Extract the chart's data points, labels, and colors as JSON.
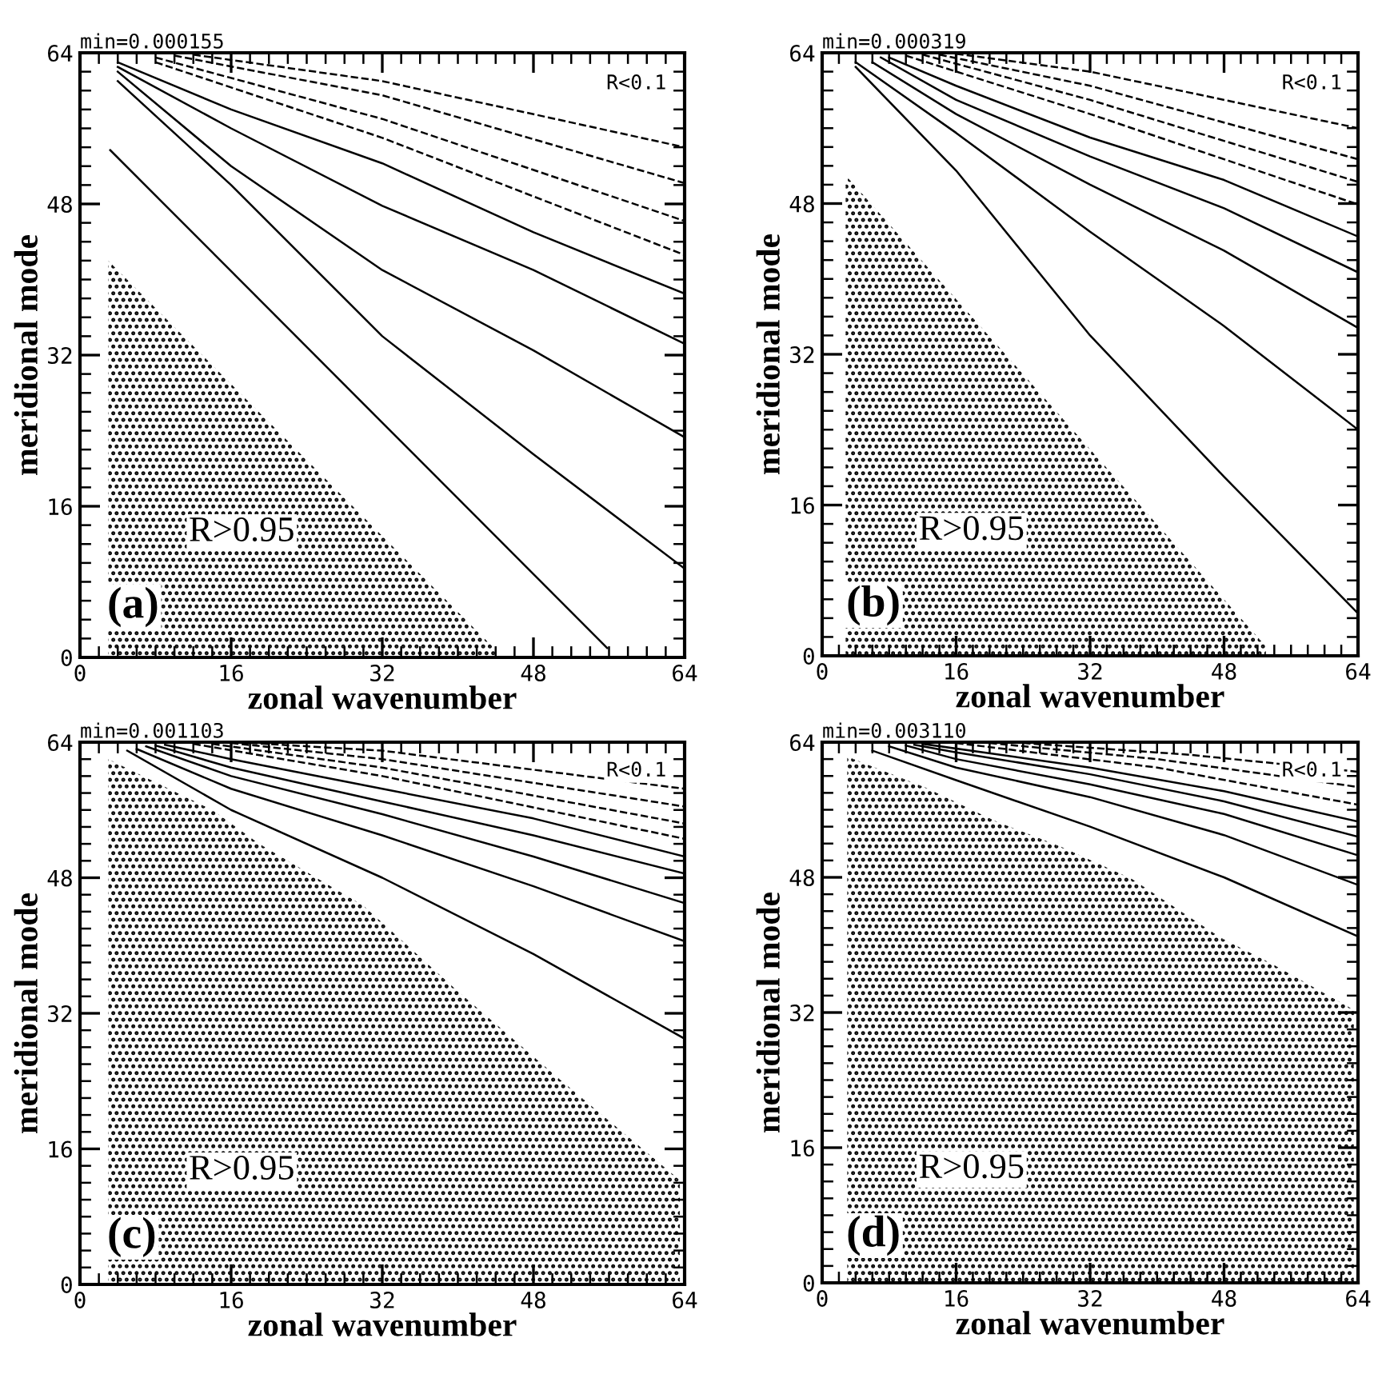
{
  "chart_data": [
    {
      "type": "line",
      "title": "min=0.000155",
      "xlabel": "zonal wavenumber",
      "ylabel": "meridional mode",
      "xlim": [
        0,
        64
      ],
      "ylim": [
        0,
        64
      ],
      "xticks": [
        0,
        16,
        32,
        48,
        64
      ],
      "yticks": [
        0,
        16,
        32,
        48,
        64
      ],
      "grid": false,
      "annotations": [
        "R<0.1",
        "R>0.95",
        "(a)"
      ],
      "series": [
        {
          "type": "area",
          "color": "#000000",
          "x": [
            3,
            44
          ],
          "values": [
            42,
            0.8
          ]
        },
        {
          "color": "#000000",
          "line_style": "solid",
          "x": [
            3.2,
            55.8
          ],
          "values": [
            53.7,
            1
          ]
        },
        {
          "color": "#000000",
          "line_style": "solid",
          "x": [
            4,
            16,
            32,
            48,
            64
          ],
          "values": [
            61,
            50,
            34,
            21.5,
            9.4
          ]
        },
        {
          "color": "#000000",
          "line_style": "solid",
          "x": [
            4,
            16,
            32,
            48,
            64
          ],
          "values": [
            62,
            52,
            41,
            32.5,
            23.3
          ]
        },
        {
          "color": "#000000",
          "line_style": "solid",
          "x": [
            4,
            16,
            32,
            48,
            64
          ],
          "values": [
            62.5,
            56,
            47.8,
            41,
            33.2
          ]
        },
        {
          "color": "#000000",
          "line_style": "solid",
          "x": [
            4,
            16,
            32,
            48,
            64
          ],
          "values": [
            63,
            58,
            52.3,
            45,
            38.5
          ]
        },
        {
          "color": "#000000",
          "line_style": "dashed",
          "x": [
            8,
            32,
            64
          ],
          "values": [
            63,
            55,
            42.6
          ]
        },
        {
          "color": "#000000",
          "line_style": "dashed",
          "x": [
            8,
            32,
            64
          ],
          "values": [
            63.5,
            57,
            46.2
          ]
        },
        {
          "color": "#000000",
          "line_style": "dashed",
          "x": [
            10,
            32,
            64
          ],
          "values": [
            63.7,
            59.5,
            50.2
          ]
        },
        {
          "color": "#000000",
          "line_style": "dashed",
          "x": [
            12,
            32,
            64
          ],
          "values": [
            63.8,
            61,
            54
          ]
        }
      ]
    },
    {
      "type": "line",
      "title": "min=0.000319",
      "xlabel": "zonal wavenumber",
      "ylabel": "meridional mode",
      "xlim": [
        0,
        64
      ],
      "ylim": [
        0,
        64
      ],
      "xticks": [
        0,
        16,
        32,
        48,
        64
      ],
      "yticks": [
        0,
        16,
        32,
        48,
        64
      ],
      "grid": false,
      "annotations": [
        "R<0.1",
        "R>0.95",
        "(b)"
      ],
      "series": [
        {
          "type": "area",
          "color": "#000000",
          "x": [
            2.8,
            53
          ],
          "values": [
            51,
            1
          ]
        },
        {
          "color": "#000000",
          "line_style": "solid",
          "x": [
            4,
            16,
            32,
            48,
            64
          ],
          "values": [
            62.5,
            51.5,
            34,
            19,
            4.5
          ]
        },
        {
          "color": "#000000",
          "line_style": "solid",
          "x": [
            4,
            16,
            32,
            48,
            64
          ],
          "values": [
            63,
            55.5,
            45,
            35,
            24
          ]
        },
        {
          "color": "#000000",
          "line_style": "solid",
          "x": [
            6,
            16,
            32,
            48,
            64
          ],
          "values": [
            63,
            57.5,
            50,
            43,
            34.8
          ]
        },
        {
          "color": "#000000",
          "line_style": "solid",
          "x": [
            7,
            16,
            32,
            48,
            64
          ],
          "values": [
            63.5,
            59,
            53,
            47.5,
            40.7
          ]
        },
        {
          "color": "#000000",
          "line_style": "solid",
          "x": [
            8,
            16,
            32,
            48,
            64
          ],
          "values": [
            63.5,
            60.5,
            55,
            50.5,
            44.5
          ]
        },
        {
          "color": "#000000",
          "line_style": "dashed",
          "x": [
            10,
            32,
            64
          ],
          "values": [
            63.7,
            57.5,
            47.9
          ]
        },
        {
          "color": "#000000",
          "line_style": "dashed",
          "x": [
            12,
            32,
            64
          ],
          "values": [
            63.8,
            59,
            50.3
          ]
        },
        {
          "color": "#000000",
          "line_style": "dashed",
          "x": [
            14,
            32,
            64
          ],
          "values": [
            63.8,
            60.5,
            52.7
          ]
        },
        {
          "color": "#000000",
          "line_style": "dashed",
          "x": [
            16,
            32,
            64
          ],
          "values": [
            63.9,
            62,
            56
          ]
        }
      ]
    },
    {
      "type": "line",
      "title": "min=0.001103",
      "xlabel": "zonal wavenumber",
      "ylabel": "meridional mode",
      "xlim": [
        0,
        64
      ],
      "ylim": [
        0,
        64
      ],
      "xticks": [
        0,
        16,
        32,
        48,
        64
      ],
      "yticks": [
        0,
        16,
        32,
        48,
        64
      ],
      "grid": false,
      "annotations": [
        "R<0.1",
        "R>0.95",
        "(c)"
      ],
      "series": [
        {
          "type": "area",
          "color": "#000000",
          "x": [
            3,
            14,
            19,
            30,
            40,
            51,
            63.5
          ],
          "values": [
            62,
            56,
            52,
            44.7,
            34.6,
            24,
            12.3
          ]
        },
        {
          "color": "#000000",
          "line_style": "solid",
          "x": [
            5,
            16,
            32,
            48,
            64
          ],
          "values": [
            63,
            56,
            48,
            39,
            29
          ]
        },
        {
          "color": "#000000",
          "line_style": "solid",
          "x": [
            6,
            16,
            32,
            48,
            64
          ],
          "values": [
            63.2,
            58.5,
            53,
            47,
            40.5
          ]
        },
        {
          "color": "#000000",
          "line_style": "solid",
          "x": [
            7,
            16,
            32,
            48,
            64
          ],
          "values": [
            63.5,
            60,
            55.5,
            50.5,
            45
          ]
        },
        {
          "color": "#000000",
          "line_style": "solid",
          "x": [
            8,
            16,
            32,
            48,
            64
          ],
          "values": [
            63.6,
            61,
            57,
            53,
            48.5
          ]
        },
        {
          "color": "#000000",
          "line_style": "solid",
          "x": [
            9,
            16,
            32,
            48,
            64
          ],
          "values": [
            63.7,
            62,
            58.5,
            55,
            50.5
          ]
        },
        {
          "color": "#000000",
          "line_style": "dashed",
          "x": [
            12,
            32,
            64
          ],
          "values": [
            63.8,
            60,
            52.6
          ]
        },
        {
          "color": "#000000",
          "line_style": "dashed",
          "x": [
            14,
            32,
            64
          ],
          "values": [
            63.8,
            61,
            54.4
          ]
        },
        {
          "color": "#000000",
          "line_style": "dashed",
          "x": [
            16,
            32,
            64
          ],
          "values": [
            63.9,
            62,
            56.4
          ]
        },
        {
          "color": "#000000",
          "line_style": "dashed",
          "x": [
            18,
            32,
            64
          ],
          "values": [
            63.9,
            63,
            58.5
          ]
        }
      ]
    },
    {
      "type": "line",
      "title": "min=0.003110",
      "xlabel": "zonal wavenumber",
      "ylabel": "meridional mode",
      "xlim": [
        0,
        64
      ],
      "ylim": [
        0,
        64
      ],
      "xticks": [
        0,
        16,
        32,
        48,
        64
      ],
      "yticks": [
        0,
        16,
        32,
        48,
        64
      ],
      "grid": false,
      "annotations": [
        "R<0.1",
        "R>0.95",
        "(d)"
      ],
      "series": [
        {
          "type": "area",
          "color": "#000000",
          "x": [
            3,
            12.4,
            20.6,
            28.8,
            37,
            47.7,
            54,
            63.5
          ],
          "values": [
            62.3,
            58.6,
            54.7,
            51.5,
            47.8,
            40.8,
            37.6,
            32.3
          ]
        },
        {
          "color": "#000000",
          "line_style": "solid",
          "x": [
            6,
            16,
            32,
            48,
            64
          ],
          "values": [
            63,
            59.5,
            54,
            48,
            41
          ]
        },
        {
          "color": "#000000",
          "line_style": "solid",
          "x": [
            8,
            16,
            32,
            48,
            64
          ],
          "values": [
            63.5,
            61,
            57.5,
            53,
            47.1
          ]
        },
        {
          "color": "#000000",
          "line_style": "solid",
          "x": [
            10,
            16,
            32,
            48,
            64
          ],
          "values": [
            63.6,
            62,
            59,
            55.5,
            50.6
          ]
        },
        {
          "color": "#000000",
          "line_style": "solid",
          "x": [
            11,
            16,
            32,
            48,
            64
          ],
          "values": [
            63.7,
            62.8,
            60.2,
            57,
            52.8
          ]
        },
        {
          "color": "#000000",
          "line_style": "solid",
          "x": [
            12,
            32,
            48,
            64
          ],
          "values": [
            63.8,
            61,
            58.2,
            54.6
          ]
        },
        {
          "color": "#000000",
          "line_style": "dashed",
          "x": [
            16,
            40,
            64
          ],
          "values": [
            63.9,
            61,
            56.6
          ]
        },
        {
          "color": "#000000",
          "line_style": "dashed",
          "x": [
            20,
            40,
            64
          ],
          "values": [
            63.9,
            62,
            58.7
          ]
        },
        {
          "color": "#000000",
          "line_style": "dashed",
          "x": [
            24,
            44,
            64
          ],
          "values": [
            63.9,
            62.5,
            60.5
          ]
        }
      ]
    }
  ]
}
